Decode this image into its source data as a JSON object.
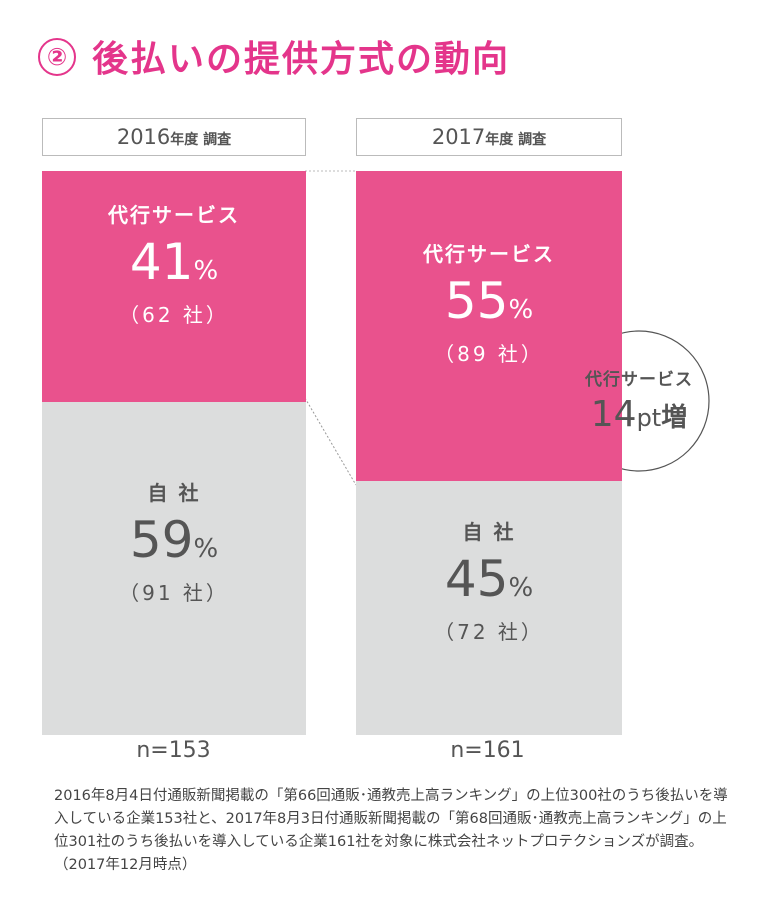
{
  "title": {
    "number": "②",
    "text": "後払いの提供方式の動向"
  },
  "chart_data": {
    "type": "bar",
    "stacked": true,
    "categories": [
      "2016年度 調査",
      "2017年度 調査"
    ],
    "series": [
      {
        "name": "代行サービス",
        "values": [
          41,
          55
        ],
        "counts": [
          62,
          89
        ],
        "color": "#e9528d"
      },
      {
        "name": "自社",
        "values": [
          59,
          45
        ],
        "counts": [
          91,
          72
        ],
        "color": "#dcdddd"
      }
    ],
    "ylim": [
      0,
      100
    ],
    "n": [
      "n=153",
      "n=161"
    ]
  },
  "bars": [
    {
      "year": "2016",
      "year_suffix": "年度 調査",
      "agency_label": "代行サービス",
      "agency_pct": "41",
      "agency_count": "（62 社）",
      "self_label": "自 社",
      "self_pct": "59",
      "self_count": "（91 社）",
      "n": "n=153"
    },
    {
      "year": "2017",
      "year_suffix": "年度 調査",
      "agency_label": "代行サービス",
      "agency_pct": "55",
      "agency_count": "（89 社）",
      "self_label": "自 社",
      "self_pct": "45",
      "self_count": "（72 社）",
      "n": "n=161"
    }
  ],
  "pct_unit": "%",
  "bubble": {
    "label": "代行サービス",
    "value": "14",
    "unit": "pt",
    "suffix": "増"
  },
  "footnote": "2016年8月4日付通販新聞掲載の「第66回通販･通教売上高ランキング」の上位300社のうち後払いを導入している企業153社と、2017年8月3日付通販新聞掲載の「第68回通販･通教売上高ランキング」の上位301社のうち後払いを導入している企業161社を対象に株式会社ネットプロテクションズが調査。（2017年12月時点）"
}
